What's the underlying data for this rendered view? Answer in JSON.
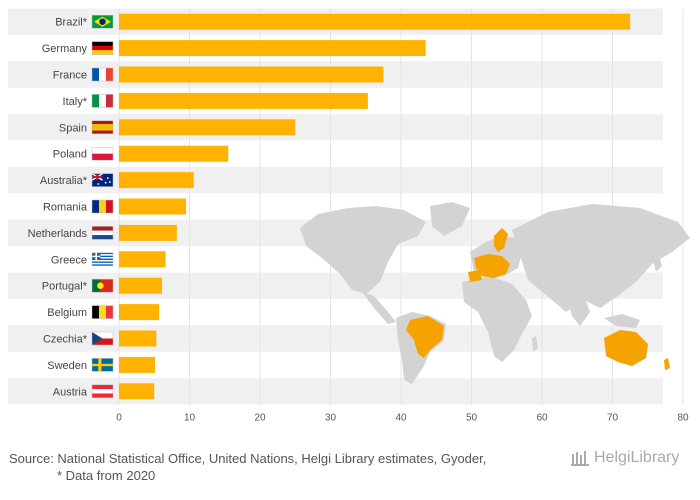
{
  "chart_data": {
    "type": "bar",
    "orientation": "horizontal",
    "categories": [
      "Brazil*",
      "Germany",
      "France",
      "Italy*",
      "Spain",
      "Poland",
      "Australia*",
      "Romania",
      "Netherlands",
      "Greece",
      "Portugal*",
      "Belgium",
      "Czechia*",
      "Sweden",
      "Austria"
    ],
    "values": [
      72.5,
      43.5,
      37.5,
      35.3,
      25.0,
      15.5,
      10.6,
      9.5,
      8.2,
      6.6,
      6.1,
      5.7,
      5.3,
      5.1,
      5.0
    ],
    "xlim": [
      0,
      80
    ],
    "xticks": [
      0,
      10,
      20,
      30,
      40,
      50,
      60,
      70,
      80
    ],
    "grid": true,
    "legend": "none",
    "bar_color": "#FFB300",
    "stripe_color": "#F0F0F0",
    "highlight_color": "#F5A300",
    "map_color": "#D3D3D3"
  },
  "footer": {
    "source": "Source: National Statistical Office, United Nations, Helgi Library estimates, Gyoder,",
    "note": "* Data from 2020",
    "logo": "HelgiLibrary"
  }
}
